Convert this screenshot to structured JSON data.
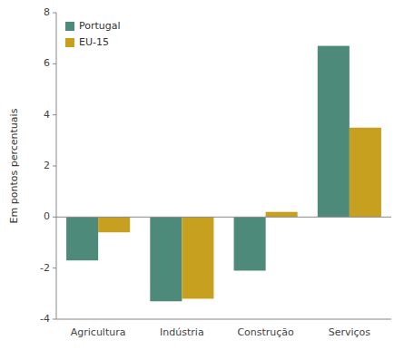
{
  "chart_data": {
    "type": "bar",
    "categories": [
      "Agricultura",
      "Indústria",
      "Construção",
      "Serviços"
    ],
    "series": [
      {
        "name": "Portugal",
        "color": "#4d8a7a",
        "values": [
          -1.7,
          -3.3,
          -2.1,
          6.7
        ]
      },
      {
        "name": "EU-15",
        "color": "#c8a020",
        "values": [
          -0.6,
          -3.2,
          0.2,
          3.5
        ]
      }
    ],
    "ylabel": "Em pontos percentuais",
    "ylim": [
      -4,
      8
    ],
    "yticks": [
      -4,
      -2,
      0,
      2,
      4,
      6,
      8
    ],
    "legend": "upper left",
    "grid": false
  }
}
